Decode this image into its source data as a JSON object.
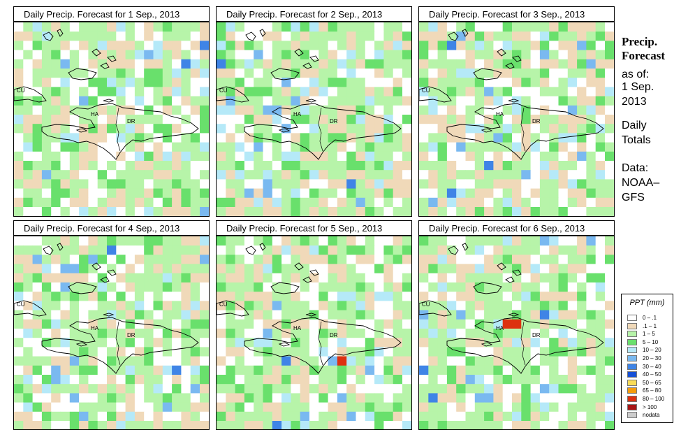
{
  "panels": [
    {
      "title": "Daily Precip. Forecast for  1 Sep., 2013",
      "seed": 11
    },
    {
      "title": "Daily Precip. Forecast for  2 Sep., 2013",
      "seed": 23
    },
    {
      "title": "Daily Precip. Forecast for  3 Sep., 2013",
      "seed": 37
    },
    {
      "title": "Daily Precip. Forecast for  4 Sep., 2013",
      "seed": 41
    },
    {
      "title": "Daily Precip. Forecast for  5 Sep., 2013",
      "seed": 53
    },
    {
      "title": "Daily Precip. Forecast for  6 Sep., 2013",
      "seed": 67
    }
  ],
  "map_labels": {
    "cuba": "CU",
    "haiti": "HA",
    "dominican_republic": "DR"
  },
  "sidebar": {
    "title_line1": "Precip.",
    "title_line2": "Forecast",
    "asof_line1": "as of:",
    "asof_line2": "1 Sep.",
    "asof_line3": "2013",
    "totals_line1": "Daily",
    "totals_line2": "Totals",
    "data_line1": "Data:",
    "data_line2": "NOAA–",
    "data_line3": "GFS"
  },
  "legend": {
    "title": "PPT (mm)",
    "items": [
      {
        "label": "0 – .1",
        "color": "#ffffff"
      },
      {
        "label": ".1 – 1",
        "color": "#f0d9b9"
      },
      {
        "label": "1 – 5",
        "color": "#b7f4a9"
      },
      {
        "label": "5 – 10",
        "color": "#69e06c"
      },
      {
        "label": "10 – 20",
        "color": "#b5e9f8"
      },
      {
        "label": "20 – 30",
        "color": "#7ab9f0"
      },
      {
        "label": "30 – 40",
        "color": "#3f84e6"
      },
      {
        "label": "40 – 50",
        "color": "#1650d6"
      },
      {
        "label": "50 – 65",
        "color": "#f9dc57"
      },
      {
        "label": "65 – 80",
        "color": "#f59c0b"
      },
      {
        "label": "80 – 100",
        "color": "#dd3110"
      },
      {
        "label": "> 100",
        "color": "#a81616"
      },
      {
        "label": "nodata",
        "color": "#cccccc"
      }
    ]
  }
}
